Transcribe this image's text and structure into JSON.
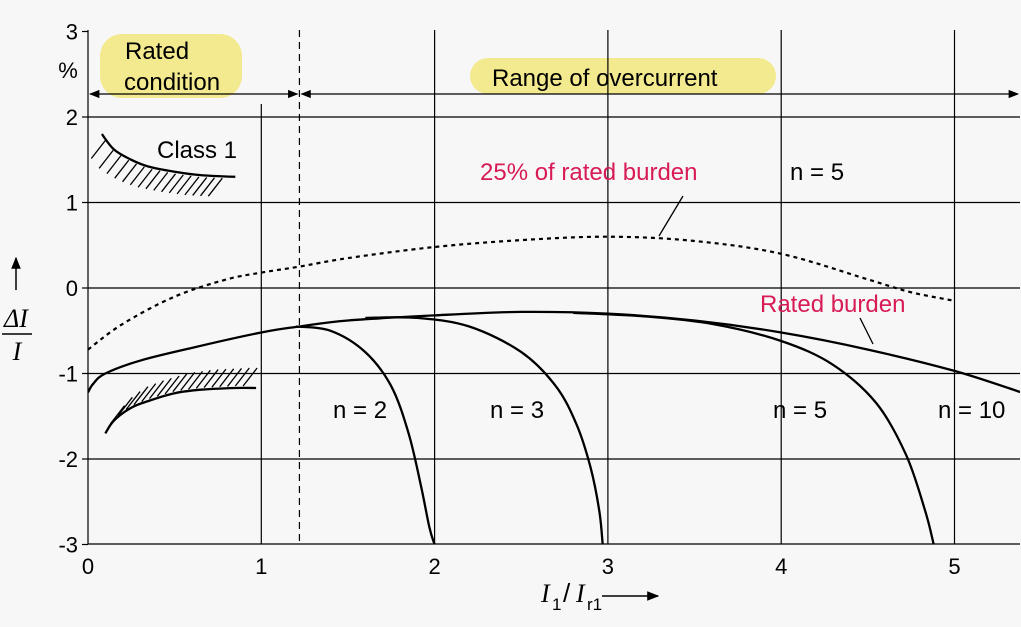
{
  "chart_data": {
    "type": "line",
    "y_unit_label": "3\n%",
    "y_unit": "%",
    "ylabel_top": "ΔI",
    "ylabel_bottom": "I",
    "xlabel_main": "I",
    "xlabel_sub1": "1",
    "xlabel_mid": "/ ",
    "xlabel_main2": "I",
    "xlabel_sub2": "r1",
    "xlim": [
      0,
      5.4
    ],
    "ylim": [
      -3,
      3
    ],
    "x_ticks": [
      "0",
      "1",
      "2",
      "3",
      "4",
      "5"
    ],
    "y_ticks": [
      "3",
      "2",
      "1",
      "0",
      "-1",
      "-2",
      "-3"
    ],
    "grid": true,
    "regions": {
      "rated_line1": "Rated",
      "rated_line2": "condition",
      "overcurrent": "Range of overcurrent",
      "divider_x": 1.22,
      "highlight_color": "#f3e98e"
    },
    "class_label": "Class 1",
    "annotations": {
      "burden25": "25% of rated burden",
      "burden25_n": "n = 5",
      "rated_burden": "Rated burden",
      "n2": "n = 2",
      "n3": "n = 3",
      "n5": "n = 5",
      "n10": "n = 10",
      "accent_color": "#d81b55"
    },
    "series": [
      {
        "name": "25% of rated burden",
        "style": "dotted",
        "x": [
          0,
          0.2,
          0.5,
          0.8,
          1.0,
          1.22,
          1.5,
          2.0,
          2.5,
          3.0,
          3.5,
          4.0,
          4.5,
          4.75,
          5.0
        ],
        "y": [
          -0.72,
          -0.42,
          -0.1,
          0.1,
          0.18,
          0.25,
          0.35,
          0.48,
          0.56,
          0.6,
          0.55,
          0.4,
          0.1,
          -0.05,
          -0.15
        ]
      },
      {
        "name": "n = 10",
        "style": "solid",
        "x": [
          0,
          0.03,
          0.1,
          0.3,
          0.6,
          1.0,
          1.22,
          1.5,
          2.0,
          2.5,
          3.0,
          3.5,
          4.0,
          4.5,
          5.0,
          5.4
        ],
        "y": [
          -1.22,
          -1.12,
          -1.0,
          -0.85,
          -0.7,
          -0.52,
          -0.45,
          -0.38,
          -0.32,
          -0.28,
          -0.3,
          -0.38,
          -0.52,
          -0.72,
          -0.97,
          -1.23
        ]
      },
      {
        "name": "n = 2",
        "style": "solid",
        "x": [
          1.2,
          1.4,
          1.6,
          1.75,
          1.85,
          1.92,
          1.97,
          2.0
        ],
        "y": [
          -0.45,
          -0.5,
          -0.75,
          -1.15,
          -1.7,
          -2.3,
          -2.8,
          -3.0
        ]
      },
      {
        "name": "n = 3",
        "style": "solid",
        "x": [
          1.6,
          1.9,
          2.2,
          2.5,
          2.7,
          2.82,
          2.9,
          2.95,
          2.97
        ],
        "y": [
          -0.35,
          -0.35,
          -0.45,
          -0.75,
          -1.15,
          -1.6,
          -2.1,
          -2.6,
          -3.0
        ]
      },
      {
        "name": "n = 5",
        "style": "solid",
        "x": [
          2.8,
          3.2,
          3.6,
          4.0,
          4.3,
          4.55,
          4.72,
          4.83,
          4.88
        ],
        "y": [
          -0.29,
          -0.33,
          -0.42,
          -0.62,
          -0.9,
          -1.35,
          -1.95,
          -2.6,
          -3.0
        ]
      }
    ],
    "class_limits": {
      "upper": {
        "x": [
          0.08,
          0.15,
          0.25,
          0.35,
          0.5,
          0.65,
          0.85
        ],
        "y": [
          1.8,
          1.62,
          1.5,
          1.42,
          1.36,
          1.32,
          1.3
        ]
      },
      "lower": {
        "x": [
          0.1,
          0.15,
          0.25,
          0.35,
          0.5,
          0.65,
          0.85,
          0.97
        ],
        "y": [
          -1.7,
          -1.55,
          -1.4,
          -1.32,
          -1.23,
          -1.19,
          -1.17,
          -1.17
        ]
      }
    }
  }
}
